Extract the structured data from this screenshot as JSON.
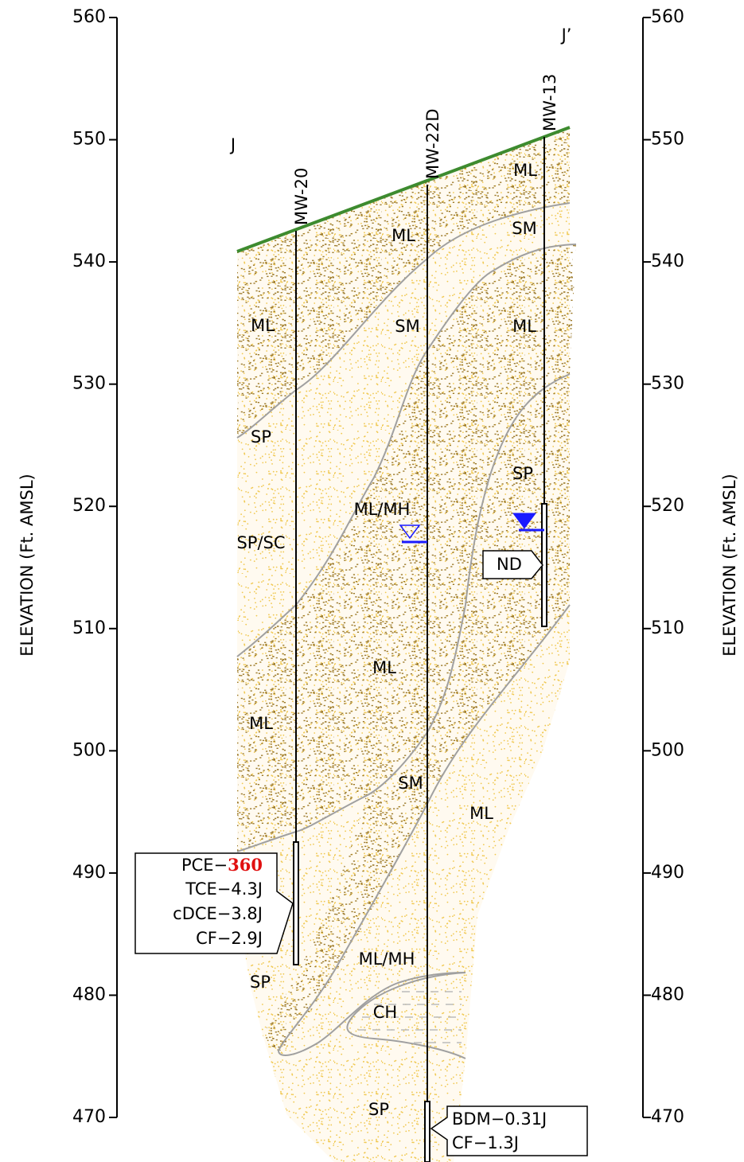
{
  "axis": {
    "left_title": "ELEVATION (Ft. AMSL)",
    "right_title": "ELEVATION (Ft. AMSL)",
    "ticks": [
      560,
      550,
      540,
      530,
      520,
      510,
      500,
      490,
      480,
      470
    ]
  },
  "section": {
    "start": "J",
    "end": "J’"
  },
  "wells": [
    "MW-20",
    "MW-22D",
    "MW-13"
  ],
  "soil_labels": [
    "ML",
    "SP",
    "SP/SC",
    "ML",
    "SP",
    "ML",
    "SM",
    "ML/MH",
    "ML",
    "SM",
    "ML",
    "ML/MH",
    "CH",
    "SP",
    "ML",
    "SM",
    "ML",
    "SP"
  ],
  "callouts": {
    "mw20": {
      "highlight": {
        "prefix": "PCE−",
        "value": "360"
      },
      "lines": [
        "TCE−4.3J",
        "cDCE−3.8J",
        "CF−2.9J"
      ]
    },
    "mw13": "ND",
    "mw22d": [
      "BDM−0.31J",
      "CF−1.3J"
    ]
  }
}
